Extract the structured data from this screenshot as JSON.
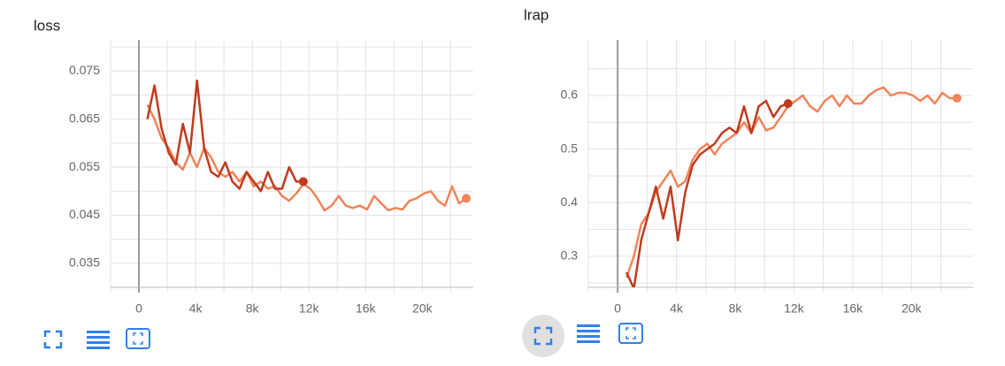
{
  "chart_data": [
    {
      "type": "line",
      "title": "loss",
      "x": [
        600,
        1100,
        1600,
        2100,
        2600,
        3100,
        3600,
        4100,
        4600,
        5100,
        5600,
        6100,
        6600,
        7100,
        7600,
        8100,
        8600,
        9100,
        9600,
        10100,
        10600,
        11100,
        11600,
        12100,
        12600,
        13100,
        13600,
        14100,
        14600,
        15100,
        15600,
        16100,
        16600,
        17100,
        17600,
        18100,
        18600,
        19100,
        19600,
        20100,
        20600,
        21100,
        21600,
        22100,
        22600,
        23100
      ],
      "series": [
        {
          "color": "#f0845a",
          "values": [
            0.068,
            0.065,
            0.061,
            0.059,
            0.056,
            0.0545,
            0.058,
            0.055,
            0.059,
            0.057,
            0.054,
            0.053,
            0.054,
            0.052,
            0.054,
            0.051,
            0.052,
            0.0505,
            0.051,
            0.049,
            0.048,
            0.0495,
            0.0515,
            0.0505,
            0.0485,
            0.046,
            0.047,
            0.049,
            0.047,
            0.0465,
            0.047,
            0.0462,
            0.049,
            0.0475,
            0.046,
            0.0465,
            0.0462,
            0.048,
            0.0485,
            0.0495,
            0.05,
            0.048,
            0.047,
            0.051,
            0.0475,
            0.0485
          ]
        },
        {
          "color": "#bf3b1e",
          "values": [
            0.065,
            0.072,
            0.063,
            0.058,
            0.0555,
            0.064,
            0.058,
            0.073,
            0.059,
            0.054,
            0.053,
            0.056,
            0.052,
            0.0505,
            0.054,
            0.052,
            0.05,
            0.054,
            0.0505,
            0.0505,
            0.055,
            0.052,
            0.052,
            null,
            null,
            null,
            null,
            null,
            null,
            null,
            null,
            null,
            null,
            null,
            null,
            null,
            null,
            null,
            null,
            null,
            null,
            null,
            null,
            null,
            null,
            null
          ]
        }
      ],
      "xlim": [
        -2000,
        23600
      ],
      "ylim": [
        0.03,
        0.0815
      ],
      "xticks": [
        0,
        {
          "value": 4000,
          "label": "4k"
        },
        {
          "value": 8000,
          "label": "8k"
        },
        {
          "value": 12000,
          "label": "12k"
        },
        {
          "value": 16000,
          "label": "16k"
        },
        {
          "value": 20000,
          "label": "20k"
        }
      ],
      "yticks": [
        0.035,
        0.045,
        0.055,
        0.065,
        0.075
      ],
      "minor_xticks": [
        -2000,
        2000,
        6000,
        10000,
        14000,
        18000,
        22000
      ],
      "minor_yticks": [
        0.03,
        0.04,
        0.05,
        0.06,
        0.07,
        0.08
      ],
      "grid": true
    },
    {
      "type": "line",
      "title": "lrap",
      "x": [
        600,
        1100,
        1600,
        2100,
        2600,
        3100,
        3600,
        4100,
        4600,
        5100,
        5600,
        6100,
        6600,
        7100,
        7600,
        8100,
        8600,
        9100,
        9600,
        10100,
        10600,
        11100,
        11600,
        12100,
        12600,
        13100,
        13600,
        14100,
        14600,
        15100,
        15600,
        16100,
        16600,
        17100,
        17600,
        18100,
        18600,
        19100,
        19600,
        20100,
        20600,
        21100,
        21600,
        22100,
        22600,
        23100
      ],
      "series": [
        {
          "color": "#f0845a",
          "values": [
            0.26,
            0.3,
            0.36,
            0.38,
            0.42,
            0.44,
            0.46,
            0.43,
            0.44,
            0.48,
            0.5,
            0.51,
            0.49,
            0.51,
            0.52,
            0.53,
            0.55,
            0.53,
            0.56,
            0.535,
            0.54,
            0.56,
            0.58,
            0.59,
            0.6,
            0.58,
            0.57,
            0.59,
            0.6,
            0.58,
            0.6,
            0.585,
            0.585,
            0.6,
            0.61,
            0.615,
            0.6,
            0.605,
            0.605,
            0.6,
            0.59,
            0.6,
            0.585,
            0.605,
            0.595,
            0.595
          ]
        },
        {
          "color": "#bf3b1e",
          "values": [
            0.27,
            0.24,
            0.33,
            0.38,
            0.43,
            0.37,
            0.43,
            0.33,
            0.42,
            0.47,
            0.49,
            0.5,
            0.51,
            0.53,
            0.54,
            0.53,
            0.58,
            0.53,
            0.58,
            0.59,
            0.56,
            0.58,
            0.585,
            null,
            null,
            null,
            null,
            null,
            null,
            null,
            null,
            null,
            null,
            null,
            null,
            null,
            null,
            null,
            null,
            null,
            null,
            null,
            null,
            null,
            null,
            null
          ]
        }
      ],
      "xlim": [
        -2000,
        24200
      ],
      "ylim": [
        0.242,
        0.704
      ],
      "xticks": [
        0,
        {
          "value": 4000,
          "label": "4k"
        },
        {
          "value": 8000,
          "label": "8k"
        },
        {
          "value": 12000,
          "label": "12k"
        },
        {
          "value": 16000,
          "label": "16k"
        },
        {
          "value": 20000,
          "label": "20k"
        }
      ],
      "yticks": [
        0.3,
        0.4,
        0.5,
        0.6
      ],
      "minor_xticks": [
        -2000,
        2000,
        6000,
        10000,
        14000,
        18000,
        22000
      ],
      "minor_yticks": [
        0.25,
        0.35,
        0.45,
        0.55,
        0.65
      ],
      "grid": true
    }
  ]
}
